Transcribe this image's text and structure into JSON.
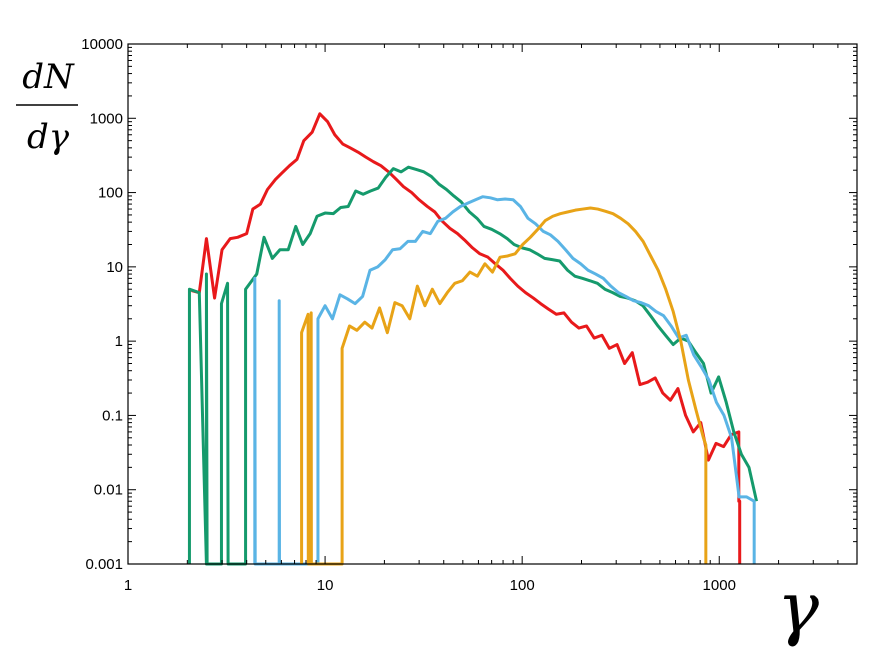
{
  "chart_data": {
    "type": "line",
    "title": "",
    "xlabel": "γ",
    "ylabel_num": "dN",
    "ylabel_den": "dγ",
    "xscale": "log",
    "yscale": "log",
    "xlim": [
      1,
      5000
    ],
    "ylim": [
      0.001,
      10000
    ],
    "grid": false,
    "legend": "none",
    "x_ticks": [
      {
        "v": 1,
        "label": "1"
      },
      {
        "v": 10,
        "label": "10"
      },
      {
        "v": 100,
        "label": "100"
      },
      {
        "v": 1000,
        "label": "1000"
      }
    ],
    "y_ticks": [
      {
        "v": 0.001,
        "label": "0.001"
      },
      {
        "v": 0.01,
        "label": "0.01"
      },
      {
        "v": 0.1,
        "label": "0.1"
      },
      {
        "v": 1,
        "label": "1"
      },
      {
        "v": 10,
        "label": "10"
      },
      {
        "v": 100,
        "label": "100"
      },
      {
        "v": 1000,
        "label": "1000"
      },
      {
        "v": 10000,
        "label": "10000"
      }
    ],
    "series": [
      {
        "color": "#e8191b",
        "points": [
          [
            2.1,
            4.8
          ],
          [
            2.3,
            4.5
          ],
          [
            2.5,
            24
          ],
          [
            2.75,
            3.8
          ],
          [
            3.0,
            17
          ],
          [
            3.3,
            24
          ],
          [
            3.6,
            25
          ],
          [
            4.0,
            28
          ],
          [
            4.3,
            60
          ],
          [
            4.7,
            70
          ],
          [
            5.1,
            110
          ],
          [
            5.6,
            150
          ],
          [
            6.0,
            180
          ],
          [
            6.6,
            230
          ],
          [
            7.2,
            280
          ],
          [
            7.8,
            500
          ],
          [
            8.6,
            650
          ],
          [
            9.4,
            1150
          ],
          [
            10.3,
            900
          ],
          [
            11.2,
            600
          ],
          [
            12.3,
            450
          ],
          [
            13.4,
            400
          ],
          [
            14.7,
            350
          ],
          [
            16.1,
            300
          ],
          [
            17.6,
            260
          ],
          [
            19.2,
            230
          ],
          [
            21,
            190
          ],
          [
            23,
            150
          ],
          [
            25,
            120
          ],
          [
            27.5,
            100
          ],
          [
            30,
            80
          ],
          [
            33,
            65
          ],
          [
            36,
            55
          ],
          [
            39,
            42
          ],
          [
            43,
            33
          ],
          [
            47,
            28
          ],
          [
            51,
            23
          ],
          [
            56,
            18
          ],
          [
            61,
            15
          ],
          [
            67,
            13.5
          ],
          [
            73,
            11
          ],
          [
            80,
            9
          ],
          [
            87,
            7
          ],
          [
            95,
            5.5
          ],
          [
            104,
            4.5
          ],
          [
            114,
            3.8
          ],
          [
            124,
            3.2
          ],
          [
            136,
            2.7
          ],
          [
            149,
            2.3
          ],
          [
            163,
            2.4
          ],
          [
            178,
            1.8
          ],
          [
            194,
            1.5
          ],
          [
            212,
            1.6
          ],
          [
            232,
            1.1
          ],
          [
            254,
            1.2
          ],
          [
            277,
            0.8
          ],
          [
            303,
            0.9
          ],
          [
            331,
            0.5
          ],
          [
            362,
            0.7
          ],
          [
            396,
            0.26
          ],
          [
            433,
            0.28
          ],
          [
            473,
            0.32
          ],
          [
            517,
            0.2
          ],
          [
            565,
            0.16
          ],
          [
            617,
            0.23
          ],
          [
            675,
            0.1
          ],
          [
            738,
            0.06
          ],
          [
            806,
            0.08
          ],
          [
            881,
            0.025
          ],
          [
            963,
            0.042
          ],
          [
            1052,
            0.038
          ],
          [
            1150,
            0.055
          ],
          [
            1257,
            0.06
          ],
          [
            1257,
            0.007
          ],
          [
            1270,
            0.007
          ],
          [
            1270,
            0.001
          ]
        ]
      },
      {
        "color": "#159a6c",
        "points": [
          [
            2.05,
            0.001
          ],
          [
            2.05,
            5
          ],
          [
            2.3,
            4.5
          ],
          [
            2.5,
            0.001
          ],
          [
            2.5,
            8
          ],
          [
            2.52,
            0.001
          ],
          [
            2.98,
            0.001
          ],
          [
            2.98,
            3.2
          ],
          [
            3.2,
            6
          ],
          [
            3.22,
            0.001
          ],
          [
            3.95,
            0.001
          ],
          [
            3.95,
            5
          ],
          [
            4.5,
            8
          ],
          [
            4.9,
            25
          ],
          [
            5.4,
            13
          ],
          [
            5.9,
            17
          ],
          [
            6.5,
            17
          ],
          [
            7.1,
            35
          ],
          [
            7.7,
            20
          ],
          [
            8.4,
            28
          ],
          [
            9.1,
            48
          ],
          [
            10,
            53
          ],
          [
            11,
            52
          ],
          [
            12,
            63
          ],
          [
            13.1,
            65
          ],
          [
            14.3,
            105
          ],
          [
            15.6,
            95
          ],
          [
            17,
            105
          ],
          [
            18.6,
            115
          ],
          [
            20.3,
            160
          ],
          [
            22.2,
            210
          ],
          [
            24.3,
            190
          ],
          [
            26.5,
            220
          ],
          [
            29,
            205
          ],
          [
            31.7,
            190
          ],
          [
            34.6,
            165
          ],
          [
            37.8,
            130
          ],
          [
            41.3,
            110
          ],
          [
            45,
            90
          ],
          [
            49,
            75
          ],
          [
            54,
            55
          ],
          [
            59,
            45
          ],
          [
            64,
            35
          ],
          [
            70,
            32
          ],
          [
            77,
            28
          ],
          [
            84,
            24
          ],
          [
            91,
            20
          ],
          [
            100,
            18
          ],
          [
            109,
            17
          ],
          [
            119,
            15
          ],
          [
            130,
            13
          ],
          [
            142,
            12.5
          ],
          [
            155,
            12
          ],
          [
            170,
            9
          ],
          [
            185,
            7.5
          ],
          [
            202,
            7
          ],
          [
            221,
            6.5
          ],
          [
            241,
            6
          ],
          [
            263,
            5
          ],
          [
            288,
            4.5
          ],
          [
            314,
            4
          ],
          [
            343,
            3.8
          ],
          [
            375,
            3.5
          ],
          [
            410,
            3
          ],
          [
            448,
            2.2
          ],
          [
            489,
            1.6
          ],
          [
            534,
            1.2
          ],
          [
            584,
            0.9
          ],
          [
            638,
            1.1
          ],
          [
            697,
            1.0
          ],
          [
            761,
            0.7
          ],
          [
            832,
            0.5
          ],
          [
            909,
            0.2
          ],
          [
            993,
            0.33
          ],
          [
            1085,
            0.15
          ],
          [
            1185,
            0.06
          ],
          [
            1295,
            0.03
          ],
          [
            1415,
            0.02
          ],
          [
            1546,
            0.007
          ]
        ]
      },
      {
        "color": "#5ab4e5",
        "points": [
          [
            4.4,
            0.001
          ],
          [
            4.4,
            7
          ],
          [
            4.42,
            0.001
          ],
          [
            5.85,
            0.001
          ],
          [
            5.85,
            3.5
          ],
          [
            5.87,
            0.001
          ],
          [
            9.2,
            0.001
          ],
          [
            9.2,
            2
          ],
          [
            10,
            3
          ],
          [
            10.9,
            2
          ],
          [
            11.9,
            4.2
          ],
          [
            13,
            3.7
          ],
          [
            14.2,
            3.2
          ],
          [
            15.5,
            4
          ],
          [
            16.9,
            9
          ],
          [
            18.5,
            10
          ],
          [
            20.2,
            12.5
          ],
          [
            22,
            17
          ],
          [
            24,
            17.5
          ],
          [
            26.3,
            22
          ],
          [
            28.7,
            22
          ],
          [
            31.3,
            30
          ],
          [
            34.2,
            28
          ],
          [
            37.3,
            41
          ],
          [
            40.8,
            45
          ],
          [
            44.5,
            55
          ],
          [
            48.6,
            65
          ],
          [
            53,
            72
          ],
          [
            58,
            80
          ],
          [
            63,
            88
          ],
          [
            69,
            85
          ],
          [
            75,
            80
          ],
          [
            82,
            82
          ],
          [
            90,
            80
          ],
          [
            98,
            65
          ],
          [
            107,
            45
          ],
          [
            117,
            38
          ],
          [
            128,
            30
          ],
          [
            139,
            27
          ],
          [
            152,
            22
          ],
          [
            166,
            17
          ],
          [
            181,
            13
          ],
          [
            198,
            11
          ],
          [
            216,
            9
          ],
          [
            236,
            8
          ],
          [
            258,
            7
          ],
          [
            282,
            5.5
          ],
          [
            308,
            4.5
          ],
          [
            336,
            4
          ],
          [
            367,
            3.5
          ],
          [
            401,
            3.3
          ],
          [
            438,
            3
          ],
          [
            478,
            2.5
          ],
          [
            522,
            2.2
          ],
          [
            570,
            1.6
          ],
          [
            623,
            1.1
          ],
          [
            680,
            1.2
          ],
          [
            743,
            0.65
          ],
          [
            811,
            0.45
          ],
          [
            886,
            0.3
          ],
          [
            968,
            0.15
          ],
          [
            1057,
            0.1
          ],
          [
            1155,
            0.05
          ],
          [
            1261,
            0.008
          ],
          [
            1377,
            0.008
          ],
          [
            1504,
            0.007
          ],
          [
            1504,
            0.001
          ]
        ]
      },
      {
        "color": "#e8a317",
        "points": [
          [
            7.6,
            0.001
          ],
          [
            7.6,
            1.3
          ],
          [
            8.2,
            2.3
          ],
          [
            8.22,
            0.001
          ],
          [
            8.5,
            0.001
          ],
          [
            8.5,
            2.4
          ],
          [
            8.52,
            0.001
          ],
          [
            12.2,
            0.001
          ],
          [
            12.2,
            0.8
          ],
          [
            13.3,
            1.6
          ],
          [
            14.5,
            1.4
          ],
          [
            15.9,
            1.8
          ],
          [
            17.3,
            1.5
          ],
          [
            18.9,
            2.8
          ],
          [
            20.7,
            1.3
          ],
          [
            22.6,
            3.3
          ],
          [
            24.6,
            3.0
          ],
          [
            26.9,
            2.0
          ],
          [
            29.4,
            5.5
          ],
          [
            32.1,
            3.0
          ],
          [
            35,
            5.0
          ],
          [
            38.2,
            3.2
          ],
          [
            41.7,
            4.5
          ],
          [
            45.5,
            6.0
          ],
          [
            49.7,
            6.5
          ],
          [
            54.3,
            8.5
          ],
          [
            59.3,
            7.5
          ],
          [
            64.7,
            11
          ],
          [
            70.7,
            8.5
          ],
          [
            77.2,
            13.5
          ],
          [
            84.3,
            14
          ],
          [
            92.1,
            15
          ],
          [
            100.6,
            20
          ],
          [
            110,
            25
          ],
          [
            120,
            32
          ],
          [
            131,
            42
          ],
          [
            143,
            48
          ],
          [
            156,
            52
          ],
          [
            171,
            55
          ],
          [
            186,
            58
          ],
          [
            203,
            60
          ],
          [
            222,
            62
          ],
          [
            242,
            60
          ],
          [
            265,
            56
          ],
          [
            289,
            52
          ],
          [
            316,
            45
          ],
          [
            345,
            38
          ],
          [
            376,
            30
          ],
          [
            411,
            22
          ],
          [
            449,
            14
          ],
          [
            490,
            9
          ],
          [
            535,
            5
          ],
          [
            584,
            2.5
          ],
          [
            638,
            1.0
          ],
          [
            697,
            0.3
          ],
          [
            761,
            0.12
          ],
          [
            831,
            0.05
          ],
          [
            855,
            0.04
          ],
          [
            855,
            0.001
          ]
        ]
      }
    ]
  }
}
